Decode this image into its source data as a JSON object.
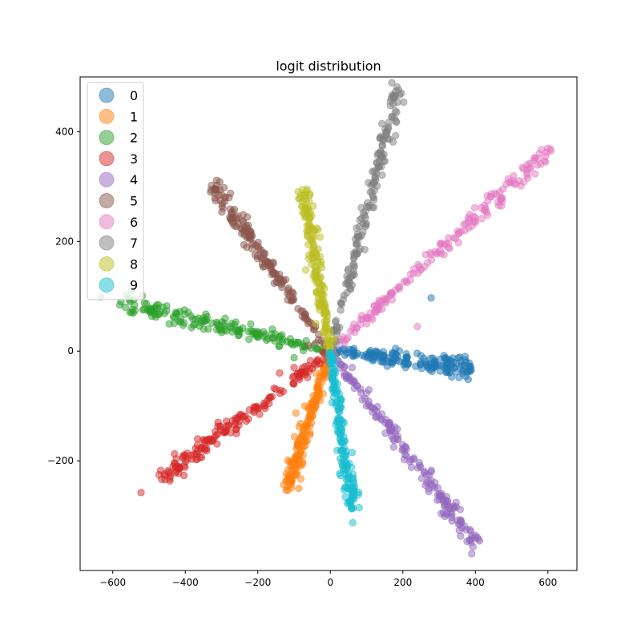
{
  "chart_data": {
    "type": "scatter",
    "title": "logit distribution",
    "xlabel": "",
    "ylabel": "",
    "xlim": [
      -690,
      680
    ],
    "ylim": [
      -400,
      500
    ],
    "xticks": [
      -600,
      -400,
      -200,
      0,
      200,
      400,
      600
    ],
    "yticks": [
      -200,
      0,
      200,
      400
    ],
    "xtick_labels": [
      "−600",
      "−400",
      "−200",
      "0",
      "200",
      "400",
      "600"
    ],
    "ytick_labels": [
      "−200",
      "0",
      "200",
      "400"
    ],
    "grid": false,
    "legend_position": "top-left",
    "series": [
      {
        "name": "0",
        "color": "#1f77b4",
        "direction": [
          390,
          -30
        ],
        "outliers": [
          [
            278,
            97
          ],
          [
            180,
            5
          ],
          [
            120,
            -10
          ],
          [
            60,
            2
          ]
        ]
      },
      {
        "name": "1",
        "color": "#ff7f0e",
        "direction": [
          -120,
          -255
        ],
        "outliers": [
          [
            -95,
            -113
          ],
          [
            -70,
            -100
          ],
          [
            -40,
            -40
          ],
          [
            -105,
            -215
          ]
        ]
      },
      {
        "name": "2",
        "color": "#2ca02c",
        "direction": [
          -580,
          90
        ],
        "outliers": [
          [
            -633,
            99
          ],
          [
            -290,
            60
          ],
          [
            -160,
            40
          ],
          [
            -100,
            -12
          ]
        ]
      },
      {
        "name": "3",
        "color": "#d62728",
        "direction": [
          -470,
          -235
        ],
        "outliers": [
          [
            -522,
            -258
          ],
          [
            -140,
            -40
          ],
          [
            -100,
            -30
          ]
        ]
      },
      {
        "name": "4",
        "color": "#9467bd",
        "direction": [
          405,
          -355
        ],
        "outliers": [
          [
            175,
            -175
          ],
          [
            100,
            -100
          ],
          [
            60,
            -30
          ]
        ]
      },
      {
        "name": "5",
        "color": "#8c564b",
        "direction": [
          -330,
          305
        ],
        "outliers": [
          [
            -40,
            15
          ],
          [
            -60,
            10
          ]
        ]
      },
      {
        "name": "6",
        "color": "#e377c2",
        "direction": [
          610,
          368
        ],
        "outliers": [
          [
            240,
            45
          ],
          [
            155,
            95
          ],
          [
            100,
            50
          ]
        ]
      },
      {
        "name": "7",
        "color": "#7f7f7f",
        "direction": [
          190,
          483
        ],
        "outliers": [
          [
            95,
            185
          ],
          [
            60,
            120
          ]
        ]
      },
      {
        "name": "8",
        "color": "#bcbd22",
        "direction": [
          -75,
          295
        ],
        "outliers": [
          [
            -68,
            148
          ],
          [
            -30,
            75
          ],
          [
            -40,
            50
          ]
        ]
      },
      {
        "name": "9",
        "color": "#17becf",
        "direction": [
          60,
          -290
        ],
        "outliers": [
          [
            62,
            -313
          ],
          [
            20,
            -60
          ]
        ]
      }
    ]
  }
}
